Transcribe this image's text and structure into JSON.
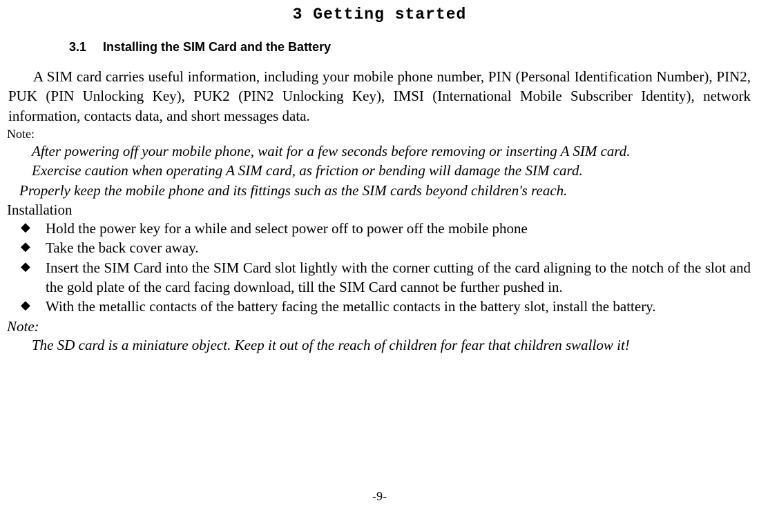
{
  "chapter_title": "3 Getting started",
  "section": {
    "num": "3.1",
    "title": "Installing the SIM Card and the Battery"
  },
  "intro_para": "A SIM card carries useful information, including your mobile phone number, PIN (Personal Identification Number), PIN2, PUK (PIN Unlocking Key), PUK2 (PIN2 Unlocking Key), IMSI (International Mobile Subscriber Identity), network information, contacts data, and short messages data.",
  "note_label": "Note:",
  "note_lines": [
    "After powering off your mobile phone, wait for a few seconds before removing or inserting A SIM card.",
    "Exercise caution when operating A SIM card, as friction or bending will damage the SIM card."
  ],
  "note_line3": "Properly keep the mobile phone and its fittings such as the SIM cards beyond children's reach.",
  "install_label": "Installation",
  "bullets": [
    "Hold the power key for a while and select power off to power off the mobile phone",
    "Take the back cover away.",
    "Insert the SIM Card into the SIM Card slot lightly with the corner cutting of the card aligning to the notch of the slot and the gold plate of the card facing download, till the SIM Card cannot be further pushed in.",
    "With the metallic contacts of the battery facing the metallic contacts in the battery slot, install the battery."
  ],
  "note2_label": "Note:",
  "note2_text": "The SD card is a miniature object. Keep it out of the reach of children for fear that children swallow it!",
  "page_number": "-9-"
}
